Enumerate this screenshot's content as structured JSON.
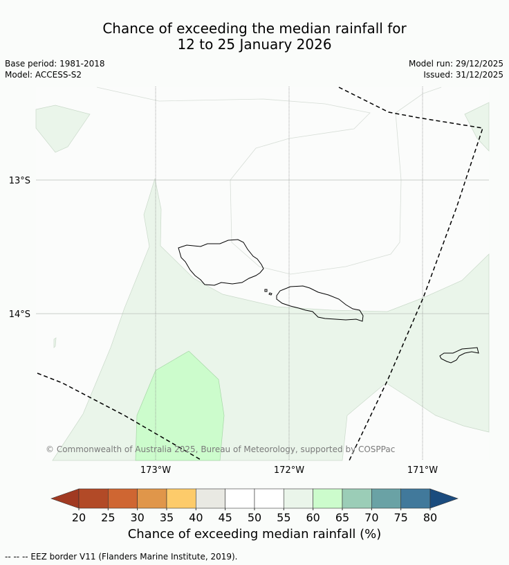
{
  "title": {
    "line1": "Chance of exceeding the median rainfall for",
    "line2": "12 to 25 January 2026"
  },
  "meta": {
    "base_period": "Base period: 1981-2018",
    "model": "Model: ACCESS-S2",
    "model_run": "Model run: 29/12/2025",
    "issued": "Issued: 31/12/2025"
  },
  "map": {
    "lat_labels": [
      "13°S",
      "14°S"
    ],
    "lon_labels": [
      "173°W",
      "172°W",
      "171°W"
    ],
    "copyright": "© Commonwealth of Australia 2025, Bureau of Meteorology, supported by COSPPac"
  },
  "colorbar": {
    "ticks": [
      "20",
      "25",
      "30",
      "35",
      "40",
      "45",
      "50",
      "55",
      "60",
      "65",
      "70",
      "75",
      "80"
    ],
    "colors": [
      "#b24a27",
      "#cf6632",
      "#e0964a",
      "#fdcb6a",
      "#e9e9e3",
      "#ffffff",
      "#ffffff",
      "#eaf5ea",
      "#ccfccc",
      "#9bcdb7",
      "#6aa2a5",
      "#41799b"
    ],
    "under_color": "#a13a22",
    "over_color": "#1b4c7e",
    "label": "Chance of exceeding median rainfall (%)"
  },
  "footer": {
    "legend": "--  --  -- EEZ border V11 (Flanders Marine Institute, 2019)."
  }
}
